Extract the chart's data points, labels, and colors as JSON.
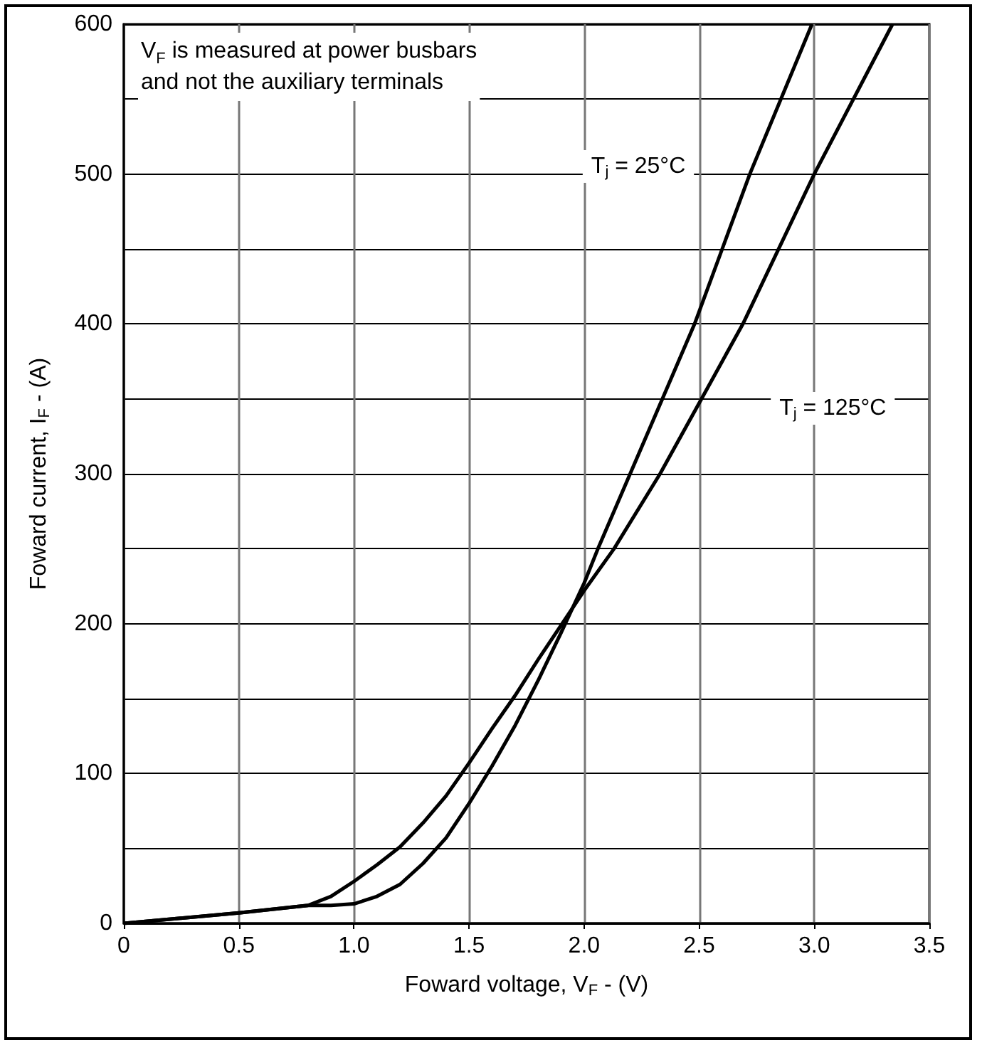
{
  "chart_data": {
    "type": "line",
    "xlabel": "Foward voltage, V$_{F}$ - (V)",
    "ylabel": "Foward current, I$_{F}$ - (A)",
    "annotations": [
      "V$_{F}$ is measured at power busbars\nand not the auxiliary terminals"
    ],
    "series": [
      {
        "name": "T$_{j}$ = 25°C",
        "color": "#000000",
        "x": [
          0,
          0.5,
          0.8,
          0.9,
          1.0,
          1.1,
          1.2,
          1.3,
          1.4,
          1.5,
          1.6,
          1.7,
          1.8,
          1.9,
          2.0,
          2.06,
          2.2,
          2.34,
          2.48,
          2.6,
          2.72,
          2.99
        ],
        "values": [
          0,
          7,
          12,
          12,
          13,
          18,
          26,
          40,
          57,
          80,
          105,
          132,
          162,
          194,
          227,
          250,
          300,
          350,
          400,
          450,
          500,
          600
        ]
      },
      {
        "name": "T$_{j}$ = 125°C",
        "color": "#000000",
        "x": [
          0,
          0.5,
          0.8,
          0.9,
          1.0,
          1.1,
          1.2,
          1.3,
          1.4,
          1.5,
          1.6,
          1.7,
          1.8,
          1.9,
          2.0,
          2.13,
          2.33,
          2.51,
          2.69,
          3.0,
          3.34
        ],
        "values": [
          0,
          7,
          12,
          18,
          28,
          39,
          51,
          67,
          85,
          107,
          130,
          152,
          176,
          199,
          222,
          250,
          300,
          350,
          400,
          500,
          600
        ]
      }
    ],
    "xlim": [
      0,
      3.5
    ],
    "xticks": [
      0,
      {
        "value": 0.5,
        "label": "0.5"
      },
      {
        "value": 1,
        "label": "1.0"
      },
      {
        "value": 1.5,
        "label": "1.5"
      },
      {
        "value": 2,
        "label": "2.0"
      },
      {
        "value": 2.5,
        "label": "2.5"
      },
      {
        "value": 3,
        "label": "3.0"
      },
      {
        "value": 3.5,
        "label": "3.5"
      }
    ],
    "ylim": [
      0,
      600
    ],
    "yticks": [
      0,
      {
        "value": 50,
        "label": null
      },
      100,
      {
        "value": 150,
        "label": null
      },
      200,
      {
        "value": 250,
        "label": null
      },
      300,
      {
        "value": 350,
        "label": null
      },
      400,
      {
        "value": 450,
        "label": null
      },
      500,
      {
        "value": 550,
        "label": null
      },
      600
    ],
    "grid": true,
    "legend": false,
    "marker": "none",
    "line_style": "solid"
  }
}
